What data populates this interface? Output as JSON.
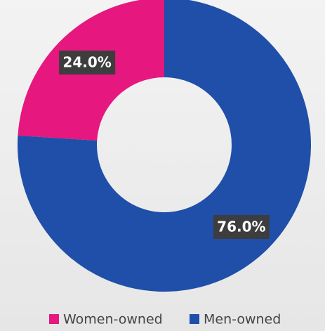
{
  "chart_data": {
    "type": "donut",
    "categories": [
      "Women-owned",
      "Men-owned"
    ],
    "values": [
      24.0,
      76.0
    ],
    "value_labels": [
      "24.0%",
      "76.0%"
    ],
    "colors": [
      "#e6177f",
      "#1f4fa8"
    ],
    "legend": "bottom"
  }
}
